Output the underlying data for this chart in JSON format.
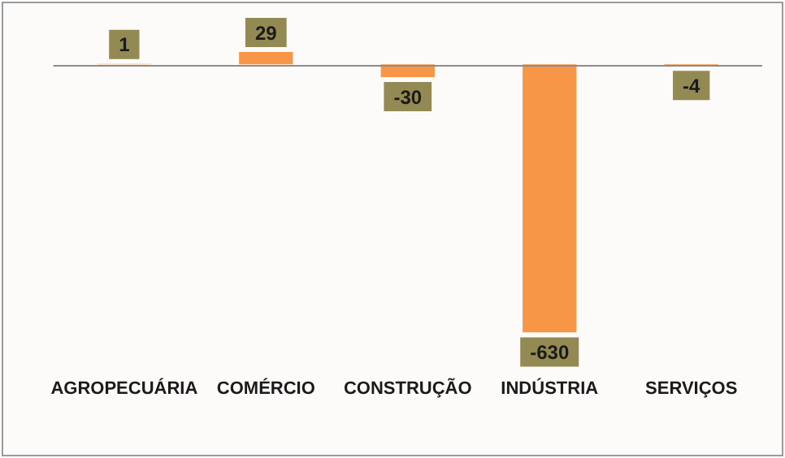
{
  "chart_data": {
    "type": "bar",
    "categories": [
      "AGROPECUÁRIA",
      "COMÉRCIO",
      "CONSTRUÇÃO",
      "INDÚSTRIA",
      "SERVIÇOS"
    ],
    "values": [
      1,
      29,
      -30,
      -630,
      -4
    ],
    "color": "#f79646",
    "tick_labels": "x",
    "grid": false,
    "legend": false,
    "data_labels": true
  }
}
